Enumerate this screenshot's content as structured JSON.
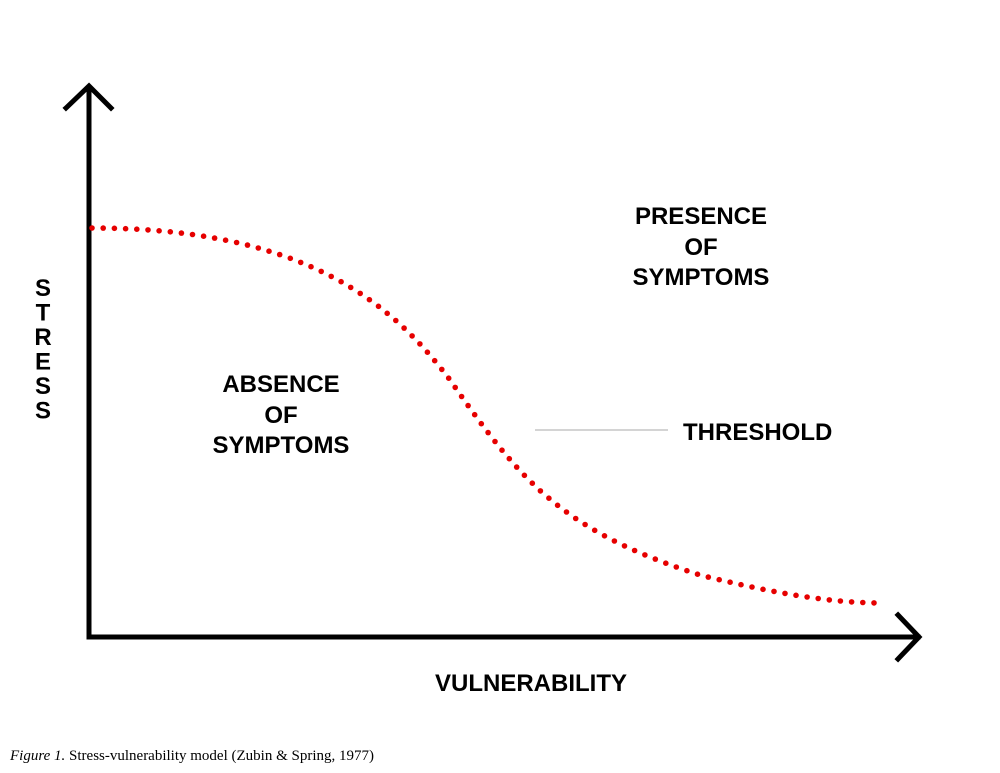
{
  "labels": {
    "y_axis": "STRESS",
    "x_axis": "VULNERABILITY",
    "presence": [
      "PRESENCE",
      "OF",
      "SYMPTOMS"
    ],
    "absence": [
      "ABSENCE",
      "OF",
      "SYMPTOMS"
    ],
    "threshold": "THRESHOLD"
  },
  "caption": {
    "figure_ref": "Figure 1.",
    "text": " Stress-vulnerability model (Zubin & Spring, 1977)"
  },
  "colors": {
    "axis": "#000000",
    "threshold_curve": "#e60000",
    "leader_line": "#aaaaaa"
  }
}
